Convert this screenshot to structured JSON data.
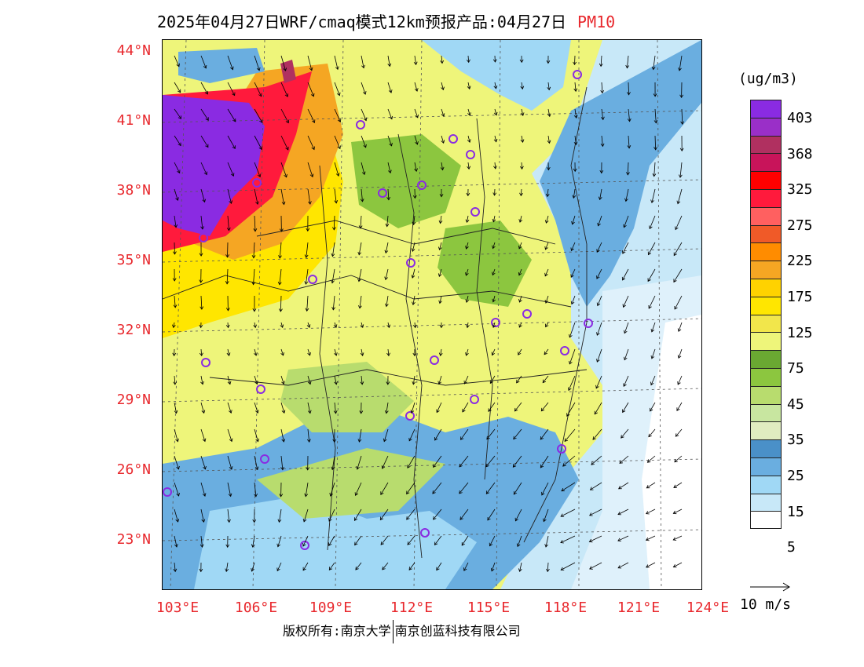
{
  "title": {
    "main": "2025年04月27日WRF/cmaq模式12km预报产品:04月27日",
    "species": "PM10"
  },
  "lat_labels": [
    "44°N",
    "41°N",
    "38°N",
    "35°N",
    "32°N",
    "29°N",
    "26°N",
    "23°N"
  ],
  "lon_labels": [
    "103°E",
    "106°E",
    "109°E",
    "112°E",
    "115°E",
    "118°E",
    "121°E",
    "124°E"
  ],
  "legend": {
    "unit": "(ug/m3)",
    "colors": [
      "#8a2be2",
      "#9a2fc8",
      "#b03060",
      "#c8145a",
      "#ff0000",
      "#ff1a3c",
      "#ff6060",
      "#f05a28",
      "#ff8c00",
      "#f5a623",
      "#ffd200",
      "#ffe600",
      "#f2e64b",
      "#eef57a",
      "#6aa832",
      "#8cc63f",
      "#b8dc6e",
      "#c8e6a0",
      "#e0ecc0",
      "#4a90c8",
      "#6aaee0",
      "#a0d8f5",
      "#c8e8f8",
      "#ffffff"
    ],
    "labels": [
      "403",
      "368",
      "325",
      "275",
      "225",
      "175",
      "125",
      "75",
      "45",
      "35",
      "25",
      "15",
      "5"
    ],
    "reference_vector": "10 m/s"
  },
  "copyright": {
    "left": "版权所有:南京大学",
    "right": "南京创蓝科技有限公司"
  }
}
